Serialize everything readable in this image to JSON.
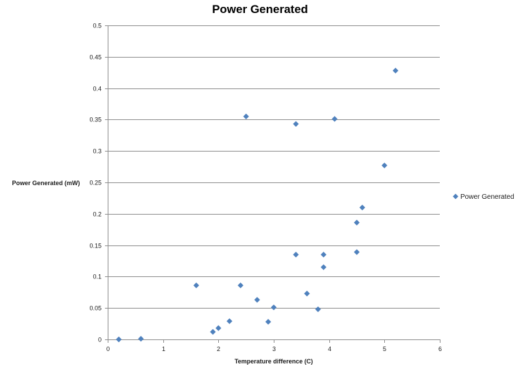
{
  "chart_data": {
    "type": "scatter",
    "title": "Power Generated",
    "xlabel": "Temperature  difference  (C)",
    "ylabel": "Power  Generated  (mW)",
    "xlim": [
      0,
      6
    ],
    "ylim": [
      0,
      0.5
    ],
    "x_ticks": [
      0,
      1,
      2,
      3,
      4,
      5,
      6
    ],
    "y_ticks": [
      0,
      0.05,
      0.1,
      0.15,
      0.2,
      0.25,
      0.3,
      0.35,
      0.4,
      0.45,
      0.5
    ],
    "x_tick_labels": [
      "0",
      "1",
      "2",
      "3",
      "4",
      "5",
      "6"
    ],
    "y_tick_labels": [
      "0",
      "0.05",
      "0.1",
      "0.15",
      "0.2",
      "0.25",
      "0.3",
      "0.35",
      "0.4",
      "0.45",
      "0.5"
    ],
    "grid": "horizontal",
    "legend_position": "right",
    "series": [
      {
        "name": "Power Generated",
        "color": "#4f81bd",
        "marker": "diamond",
        "points": [
          {
            "x": 0.2,
            "y": 0.0
          },
          {
            "x": 0.6,
            "y": 0.001
          },
          {
            "x": 1.6,
            "y": 0.086
          },
          {
            "x": 1.9,
            "y": 0.012
          },
          {
            "x": 2.0,
            "y": 0.018
          },
          {
            "x": 2.2,
            "y": 0.029
          },
          {
            "x": 2.4,
            "y": 0.086
          },
          {
            "x": 2.5,
            "y": 0.355
          },
          {
            "x": 2.7,
            "y": 0.063
          },
          {
            "x": 2.9,
            "y": 0.028
          },
          {
            "x": 3.0,
            "y": 0.051
          },
          {
            "x": 3.4,
            "y": 0.343
          },
          {
            "x": 3.4,
            "y": 0.135
          },
          {
            "x": 3.6,
            "y": 0.073
          },
          {
            "x": 3.8,
            "y": 0.048
          },
          {
            "x": 3.9,
            "y": 0.135
          },
          {
            "x": 3.9,
            "y": 0.115
          },
          {
            "x": 4.1,
            "y": 0.351
          },
          {
            "x": 4.5,
            "y": 0.186
          },
          {
            "x": 4.5,
            "y": 0.139
          },
          {
            "x": 4.6,
            "y": 0.21
          },
          {
            "x": 5.0,
            "y": 0.277
          },
          {
            "x": 5.2,
            "y": 0.428
          }
        ]
      }
    ]
  }
}
